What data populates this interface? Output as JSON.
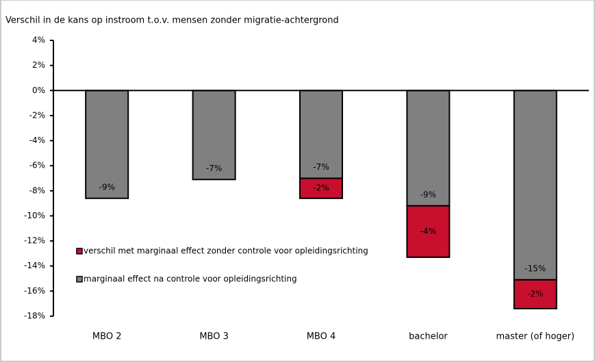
{
  "chart_data": {
    "type": "bar",
    "stacked": true,
    "y_label": "Verschil in de kans op instroom t.o.v. mensen zonder migratie-achtergrond",
    "categories": [
      "MBO 2",
      "MBO 3",
      "MBO 4",
      "bachelor",
      "master (of hoger)"
    ],
    "series": [
      {
        "name": "marginaal effect na controle voor opleidingsrichting",
        "color": "#808080",
        "values": [
          -8.6,
          -7.1,
          -7.0,
          -9.2,
          -15.1
        ],
        "value_labels": [
          "-9%",
          "-7%",
          "-7%",
          "-9%",
          "-15%"
        ]
      },
      {
        "name": "verschil met marginaal effect zonder controle voor opleidingsrichting",
        "color": "#c8102e",
        "values": [
          null,
          null,
          -1.6,
          -4.1,
          -2.3
        ],
        "value_labels": [
          null,
          null,
          "-2%",
          "-4%",
          "-2%"
        ]
      }
    ],
    "ylim": [
      4,
      -18
    ],
    "yticks": [
      {
        "value": 4,
        "label": "4%"
      },
      {
        "value": 2,
        "label": "2%"
      },
      {
        "value": 0,
        "label": "0%"
      },
      {
        "value": -2,
        "label": "-2%"
      },
      {
        "value": -4,
        "label": "-4%"
      },
      {
        "value": -6,
        "label": "-6%"
      },
      {
        "value": -8,
        "label": "-8%"
      },
      {
        "value": -10,
        "label": "-10%"
      },
      {
        "value": -12,
        "label": "-12%"
      },
      {
        "value": -14,
        "label": "-14%"
      },
      {
        "value": -16,
        "label": "-16%"
      },
      {
        "value": -18,
        "label": "-18%"
      }
    ]
  }
}
